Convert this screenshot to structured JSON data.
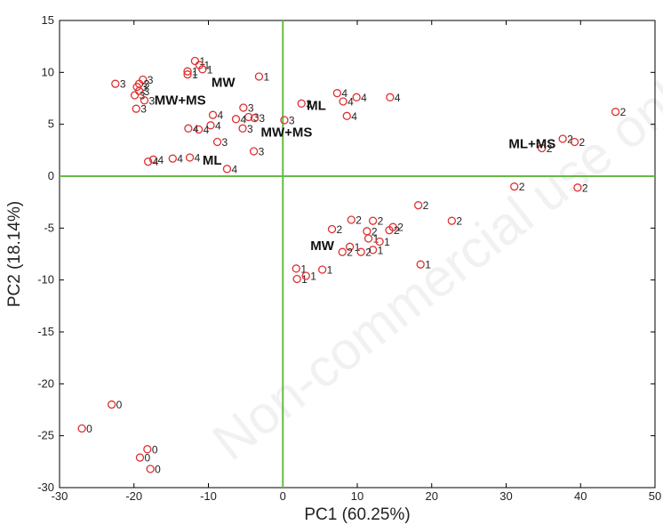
{
  "chart_data": {
    "type": "scatter",
    "xlabel": "PC1 (60.25%)",
    "ylabel": "PC2 (18.14%)",
    "xlim": [
      -30,
      50
    ],
    "ylim": [
      -30,
      15
    ],
    "xticks": [
      "-30",
      "-20",
      "-10",
      "0",
      "10",
      "20",
      "30",
      "40",
      "50"
    ],
    "yticks": [
      "15",
      "10",
      "5",
      "0",
      "-5",
      "-10",
      "-15",
      "-20",
      "-25",
      "-30"
    ],
    "marker_color": "#e03030",
    "reference_line_color": "#66bb44",
    "watermark": "Non-commercial use only",
    "points": [
      {
        "x": -23,
        "y": -22,
        "label": "0"
      },
      {
        "x": -27,
        "y": -24.3,
        "label": "0"
      },
      {
        "x": -18.2,
        "y": -26.3,
        "label": "0"
      },
      {
        "x": -19.2,
        "y": -27.1,
        "label": "0"
      },
      {
        "x": -17.8,
        "y": -28.2,
        "label": "0"
      },
      {
        "x": -11.8,
        "y": 11.1,
        "label": "1"
      },
      {
        "x": -11.2,
        "y": 10.7,
        "label": "1"
      },
      {
        "x": -10.8,
        "y": 10.3,
        "label": "1"
      },
      {
        "x": -12.8,
        "y": 10.1,
        "label": "1"
      },
      {
        "x": -12.8,
        "y": 9.8,
        "label": "1"
      },
      {
        "x": -3.2,
        "y": 9.6,
        "label": "1"
      },
      {
        "x": 11.5,
        "y": -6.0,
        "label": "1"
      },
      {
        "x": 13,
        "y": -6.3,
        "label": "1"
      },
      {
        "x": 9,
        "y": -6.8,
        "label": "1"
      },
      {
        "x": 12.1,
        "y": -7.1,
        "label": "1"
      },
      {
        "x": 18.5,
        "y": -8.5,
        "label": "1"
      },
      {
        "x": 5.3,
        "y": -9.0,
        "label": "1"
      },
      {
        "x": 1.8,
        "y": -8.9,
        "label": "1"
      },
      {
        "x": 1.9,
        "y": -9.9,
        "label": "1"
      },
      {
        "x": 3.1,
        "y": -9.6,
        "label": "1"
      },
      {
        "x": 44.7,
        "y": 6.2,
        "label": "2"
      },
      {
        "x": 37.6,
        "y": 3.6,
        "label": "2"
      },
      {
        "x": 39.2,
        "y": 3.3,
        "label": "2"
      },
      {
        "x": 34.8,
        "y": 2.7,
        "label": "2"
      },
      {
        "x": 31.1,
        "y": -1.0,
        "label": "2"
      },
      {
        "x": 39.6,
        "y": -1.1,
        "label": "2"
      },
      {
        "x": 18.2,
        "y": -2.8,
        "label": "2"
      },
      {
        "x": 22.7,
        "y": -4.3,
        "label": "2"
      },
      {
        "x": 9.2,
        "y": -4.2,
        "label": "2"
      },
      {
        "x": 12.1,
        "y": -4.3,
        "label": "2"
      },
      {
        "x": 14.8,
        "y": -4.9,
        "label": "2"
      },
      {
        "x": 14.3,
        "y": -5.2,
        "label": "2"
      },
      {
        "x": 6.6,
        "y": -5.1,
        "label": "2"
      },
      {
        "x": 11.3,
        "y": -5.3,
        "label": "2"
      },
      {
        "x": 10.5,
        "y": -7.3,
        "label": "2"
      },
      {
        "x": 8.0,
        "y": -7.3,
        "label": "2"
      },
      {
        "x": -22.5,
        "y": 8.9,
        "label": "3"
      },
      {
        "x": -18.8,
        "y": 9.3,
        "label": "3"
      },
      {
        "x": -19.3,
        "y": 8.9,
        "label": "3"
      },
      {
        "x": -19.6,
        "y": 8.6,
        "label": "3"
      },
      {
        "x": -19.3,
        "y": 8.2,
        "label": "3"
      },
      {
        "x": -19.9,
        "y": 7.8,
        "label": "3"
      },
      {
        "x": -18.6,
        "y": 7.3,
        "label": "3"
      },
      {
        "x": -19.7,
        "y": 6.5,
        "label": "3"
      },
      {
        "x": 2.5,
        "y": 7.0,
        "label": "3"
      },
      {
        "x": -5.3,
        "y": 6.6,
        "label": "3"
      },
      {
        "x": -4.6,
        "y": 5.7,
        "label": "3"
      },
      {
        "x": -3.8,
        "y": 5.6,
        "label": "3"
      },
      {
        "x": 0.2,
        "y": 5.4,
        "label": "3"
      },
      {
        "x": -5.4,
        "y": 4.6,
        "label": "3"
      },
      {
        "x": -8.8,
        "y": 3.3,
        "label": "3"
      },
      {
        "x": -3.9,
        "y": 2.4,
        "label": "3"
      },
      {
        "x": 7.3,
        "y": 8.0,
        "label": "4"
      },
      {
        "x": 9.9,
        "y": 7.6,
        "label": "4"
      },
      {
        "x": 14.4,
        "y": 7.6,
        "label": "4"
      },
      {
        "x": 8.1,
        "y": 7.2,
        "label": "4"
      },
      {
        "x": 8.6,
        "y": 5.8,
        "label": "4"
      },
      {
        "x": -9.4,
        "y": 5.9,
        "label": "4"
      },
      {
        "x": -6.3,
        "y": 5.5,
        "label": "4"
      },
      {
        "x": -9.7,
        "y": 4.9,
        "label": "4"
      },
      {
        "x": -12.7,
        "y": 4.6,
        "label": "4"
      },
      {
        "x": -11.3,
        "y": 4.5,
        "label": "4"
      },
      {
        "x": -12.5,
        "y": 1.8,
        "label": "4"
      },
      {
        "x": -17.4,
        "y": 1.6,
        "label": "4"
      },
      {
        "x": -18.1,
        "y": 1.4,
        "label": "4"
      },
      {
        "x": -14.8,
        "y": 1.7,
        "label": "4"
      },
      {
        "x": -7.5,
        "y": 0.7,
        "label": "4"
      }
    ],
    "annotations": [
      {
        "text": "MW",
        "x": -8,
        "y": 8.6
      },
      {
        "text": "MW+MS",
        "x": -13.8,
        "y": 6.9
      },
      {
        "text": "ML",
        "x": 4.5,
        "y": 6.4
      },
      {
        "text": "MW+MS",
        "x": 0.5,
        "y": 3.8
      },
      {
        "text": "ML",
        "x": -9.5,
        "y": 1.1
      },
      {
        "text": "ML+MS",
        "x": 33.5,
        "y": 2.7
      },
      {
        "text": "MW",
        "x": 5.3,
        "y": -7.1
      }
    ]
  }
}
